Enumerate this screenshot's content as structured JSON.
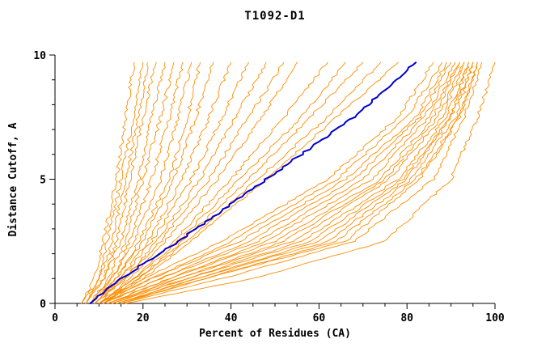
{
  "page": {
    "background": "#ffffff"
  },
  "chart_data": {
    "type": "line",
    "title": "T1092-D1",
    "xlabel": "Percent of Residues (CA)",
    "ylabel": "Distance Cutoff, A",
    "xlim": [
      0,
      100
    ],
    "ylim": [
      0,
      10
    ],
    "x_ticks": [
      0,
      20,
      40,
      60,
      80,
      100
    ],
    "y_ticks": [
      0,
      5,
      10
    ],
    "grid": false,
    "legend": "none",
    "colors": {
      "model": "#ff8c00",
      "highlight": "#0000cd",
      "axis": "#000000"
    },
    "y_knots": [
      0,
      1,
      2.5,
      5,
      7.5,
      9.7
    ],
    "series": [
      {
        "role": "model",
        "color": "#ff8c00",
        "x_at_knots": [
          6,
          9,
          11,
          14,
          16,
          18
        ]
      },
      {
        "role": "model",
        "color": "#ff8c00",
        "x_at_knots": [
          6,
          10,
          12,
          15,
          18,
          20
        ]
      },
      {
        "role": "model",
        "color": "#ff8c00",
        "x_at_knots": [
          7,
          10,
          13,
          16,
          19,
          21
        ]
      },
      {
        "role": "model",
        "color": "#ff8c00",
        "x_at_knots": [
          7,
          11,
          14,
          17,
          20,
          23
        ]
      },
      {
        "role": "model",
        "color": "#ff8c00",
        "x_at_knots": [
          7,
          11,
          15,
          19,
          22,
          25
        ]
      },
      {
        "role": "model",
        "color": "#ff8c00",
        "x_at_knots": [
          8,
          12,
          16,
          20,
          24,
          27
        ]
      },
      {
        "role": "model",
        "color": "#ff8c00",
        "x_at_knots": [
          8,
          13,
          17,
          22,
          26,
          29
        ]
      },
      {
        "role": "model",
        "color": "#ff8c00",
        "x_at_knots": [
          8,
          13,
          18,
          24,
          28,
          31
        ]
      },
      {
        "role": "model",
        "color": "#ff8c00",
        "x_at_knots": [
          8,
          14,
          19,
          26,
          30,
          33
        ]
      },
      {
        "role": "model",
        "color": "#ff8c00",
        "x_at_knots": [
          8,
          14,
          20,
          27,
          32,
          36
        ]
      },
      {
        "role": "model",
        "color": "#ff8c00",
        "x_at_knots": [
          9,
          15,
          21,
          29,
          35,
          40
        ]
      },
      {
        "role": "model",
        "color": "#ff8c00",
        "x_at_knots": [
          9,
          15,
          22,
          31,
          38,
          44
        ]
      },
      {
        "role": "model",
        "color": "#ff8c00",
        "x_at_knots": [
          9,
          16,
          23,
          33,
          41,
          48
        ]
      },
      {
        "role": "model",
        "color": "#ff8c00",
        "x_at_knots": [
          9,
          16,
          24,
          35,
          44,
          52
        ]
      },
      {
        "role": "model",
        "color": "#ff8c00",
        "x_at_knots": [
          10,
          17,
          25,
          37,
          47,
          55
        ]
      },
      {
        "role": "model",
        "color": "#ff8c00",
        "x_at_knots": [
          10,
          18,
          27,
          40,
          52,
          62
        ]
      },
      {
        "role": "model",
        "color": "#ff8c00",
        "x_at_knots": [
          10,
          18,
          28,
          42,
          56,
          66
        ]
      },
      {
        "role": "model",
        "color": "#ff8c00",
        "x_at_knots": [
          10,
          19,
          29,
          44,
          58,
          70
        ]
      },
      {
        "role": "model",
        "color": "#ff8c00",
        "x_at_knots": [
          11,
          19,
          30,
          46,
          62,
          74
        ]
      },
      {
        "role": "model",
        "color": "#ff8c00",
        "x_at_knots": [
          11,
          20,
          31,
          48,
          64,
          78
        ]
      },
      {
        "role": "model",
        "color": "#ff8c00",
        "x_at_knots": [
          10,
          20,
          38,
          62,
          78,
          86
        ]
      },
      {
        "role": "model",
        "color": "#ff8c00",
        "x_at_knots": [
          10,
          22,
          40,
          64,
          80,
          88
        ]
      },
      {
        "role": "model",
        "color": "#ff8c00",
        "x_at_knots": [
          11,
          22,
          42,
          66,
          82,
          89
        ]
      },
      {
        "role": "model",
        "color": "#ff8c00",
        "x_at_knots": [
          11,
          24,
          44,
          68,
          83,
          90
        ]
      },
      {
        "role": "model",
        "color": "#ff8c00",
        "x_at_knots": [
          11,
          24,
          46,
          70,
          84,
          91
        ]
      },
      {
        "role": "model",
        "color": "#ff8c00",
        "x_at_knots": [
          12,
          26,
          48,
          72,
          85,
          92
        ]
      },
      {
        "role": "model",
        "color": "#ff8c00",
        "x_at_knots": [
          12,
          26,
          50,
          74,
          86,
          92
        ]
      },
      {
        "role": "model",
        "color": "#ff8c00",
        "x_at_knots": [
          12,
          28,
          52,
          75,
          87,
          93
        ]
      },
      {
        "role": "model",
        "color": "#ff8c00",
        "x_at_knots": [
          13,
          28,
          54,
          76,
          88,
          93
        ]
      },
      {
        "role": "model",
        "color": "#ff8c00",
        "x_at_knots": [
          13,
          30,
          56,
          78,
          89,
          94
        ]
      },
      {
        "role": "model",
        "color": "#ff8c00",
        "x_at_knots": [
          13,
          30,
          58,
          79,
          90,
          94
        ]
      },
      {
        "role": "model",
        "color": "#ff8c00",
        "x_at_knots": [
          14,
          32,
          60,
          80,
          90,
          95
        ]
      },
      {
        "role": "model",
        "color": "#ff8c00",
        "x_at_knots": [
          14,
          32,
          62,
          81,
          91,
          95
        ]
      },
      {
        "role": "model",
        "color": "#ff8c00",
        "x_at_knots": [
          14,
          34,
          64,
          82,
          92,
          96
        ]
      },
      {
        "role": "model",
        "color": "#ff8c00",
        "x_at_knots": [
          15,
          34,
          66,
          83,
          92,
          96
        ]
      },
      {
        "role": "model",
        "color": "#ff8c00",
        "x_at_knots": [
          15,
          38,
          68,
          86,
          93,
          97
        ]
      },
      {
        "role": "model",
        "color": "#ff8c00",
        "x_at_knots": [
          16,
          45,
          75,
          90,
          96,
          100
        ]
      },
      {
        "role": "highlight",
        "color": "#0000cd",
        "width": 2,
        "x_at_knots": [
          8,
          15,
          28,
          48,
          68,
          82
        ]
      }
    ]
  }
}
